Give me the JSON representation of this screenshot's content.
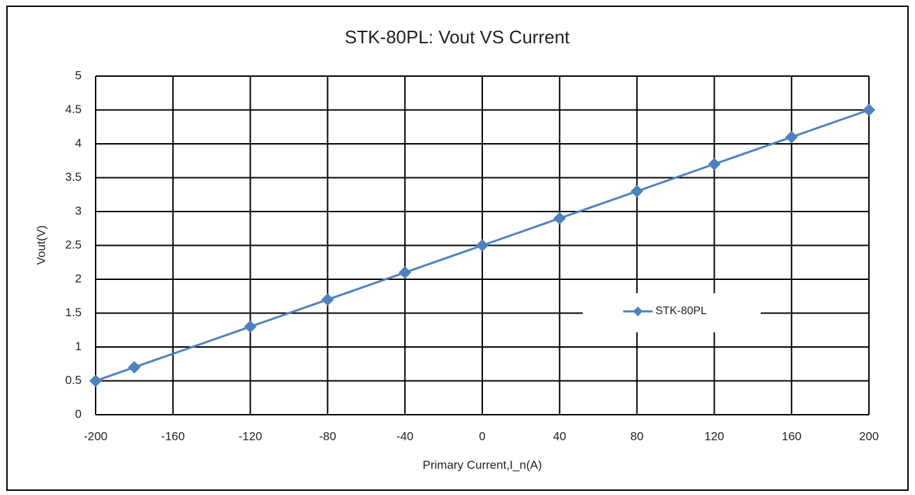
{
  "chart_data": {
    "type": "line",
    "title": "STK-80PL:  Vout VS Current",
    "x_label": "Primary Current,I_n(A)",
    "y_label": "Vout(V)",
    "x": [
      -200,
      -180,
      -120,
      -80,
      -40,
      0,
      40,
      80,
      120,
      160,
      200
    ],
    "series": [
      {
        "name": "STK-80PL",
        "color": "#4f81bd",
        "values": [
          0.5,
          0.7,
          1.3,
          1.7,
          2.1,
          2.5,
          2.9,
          3.3,
          3.7,
          4.1,
          4.5
        ]
      }
    ],
    "xlim": [
      -200,
      200
    ],
    "xticks": [
      -200,
      -160,
      -120,
      -80,
      -40,
      0,
      40,
      80,
      120,
      160,
      200
    ],
    "ylim": [
      0,
      5
    ],
    "yticks": [
      0,
      0.5,
      1,
      1.5,
      2,
      2.5,
      3,
      3.5,
      4,
      4.5,
      5
    ],
    "grid": true,
    "legend": "right",
    "marker": "diamond"
  }
}
